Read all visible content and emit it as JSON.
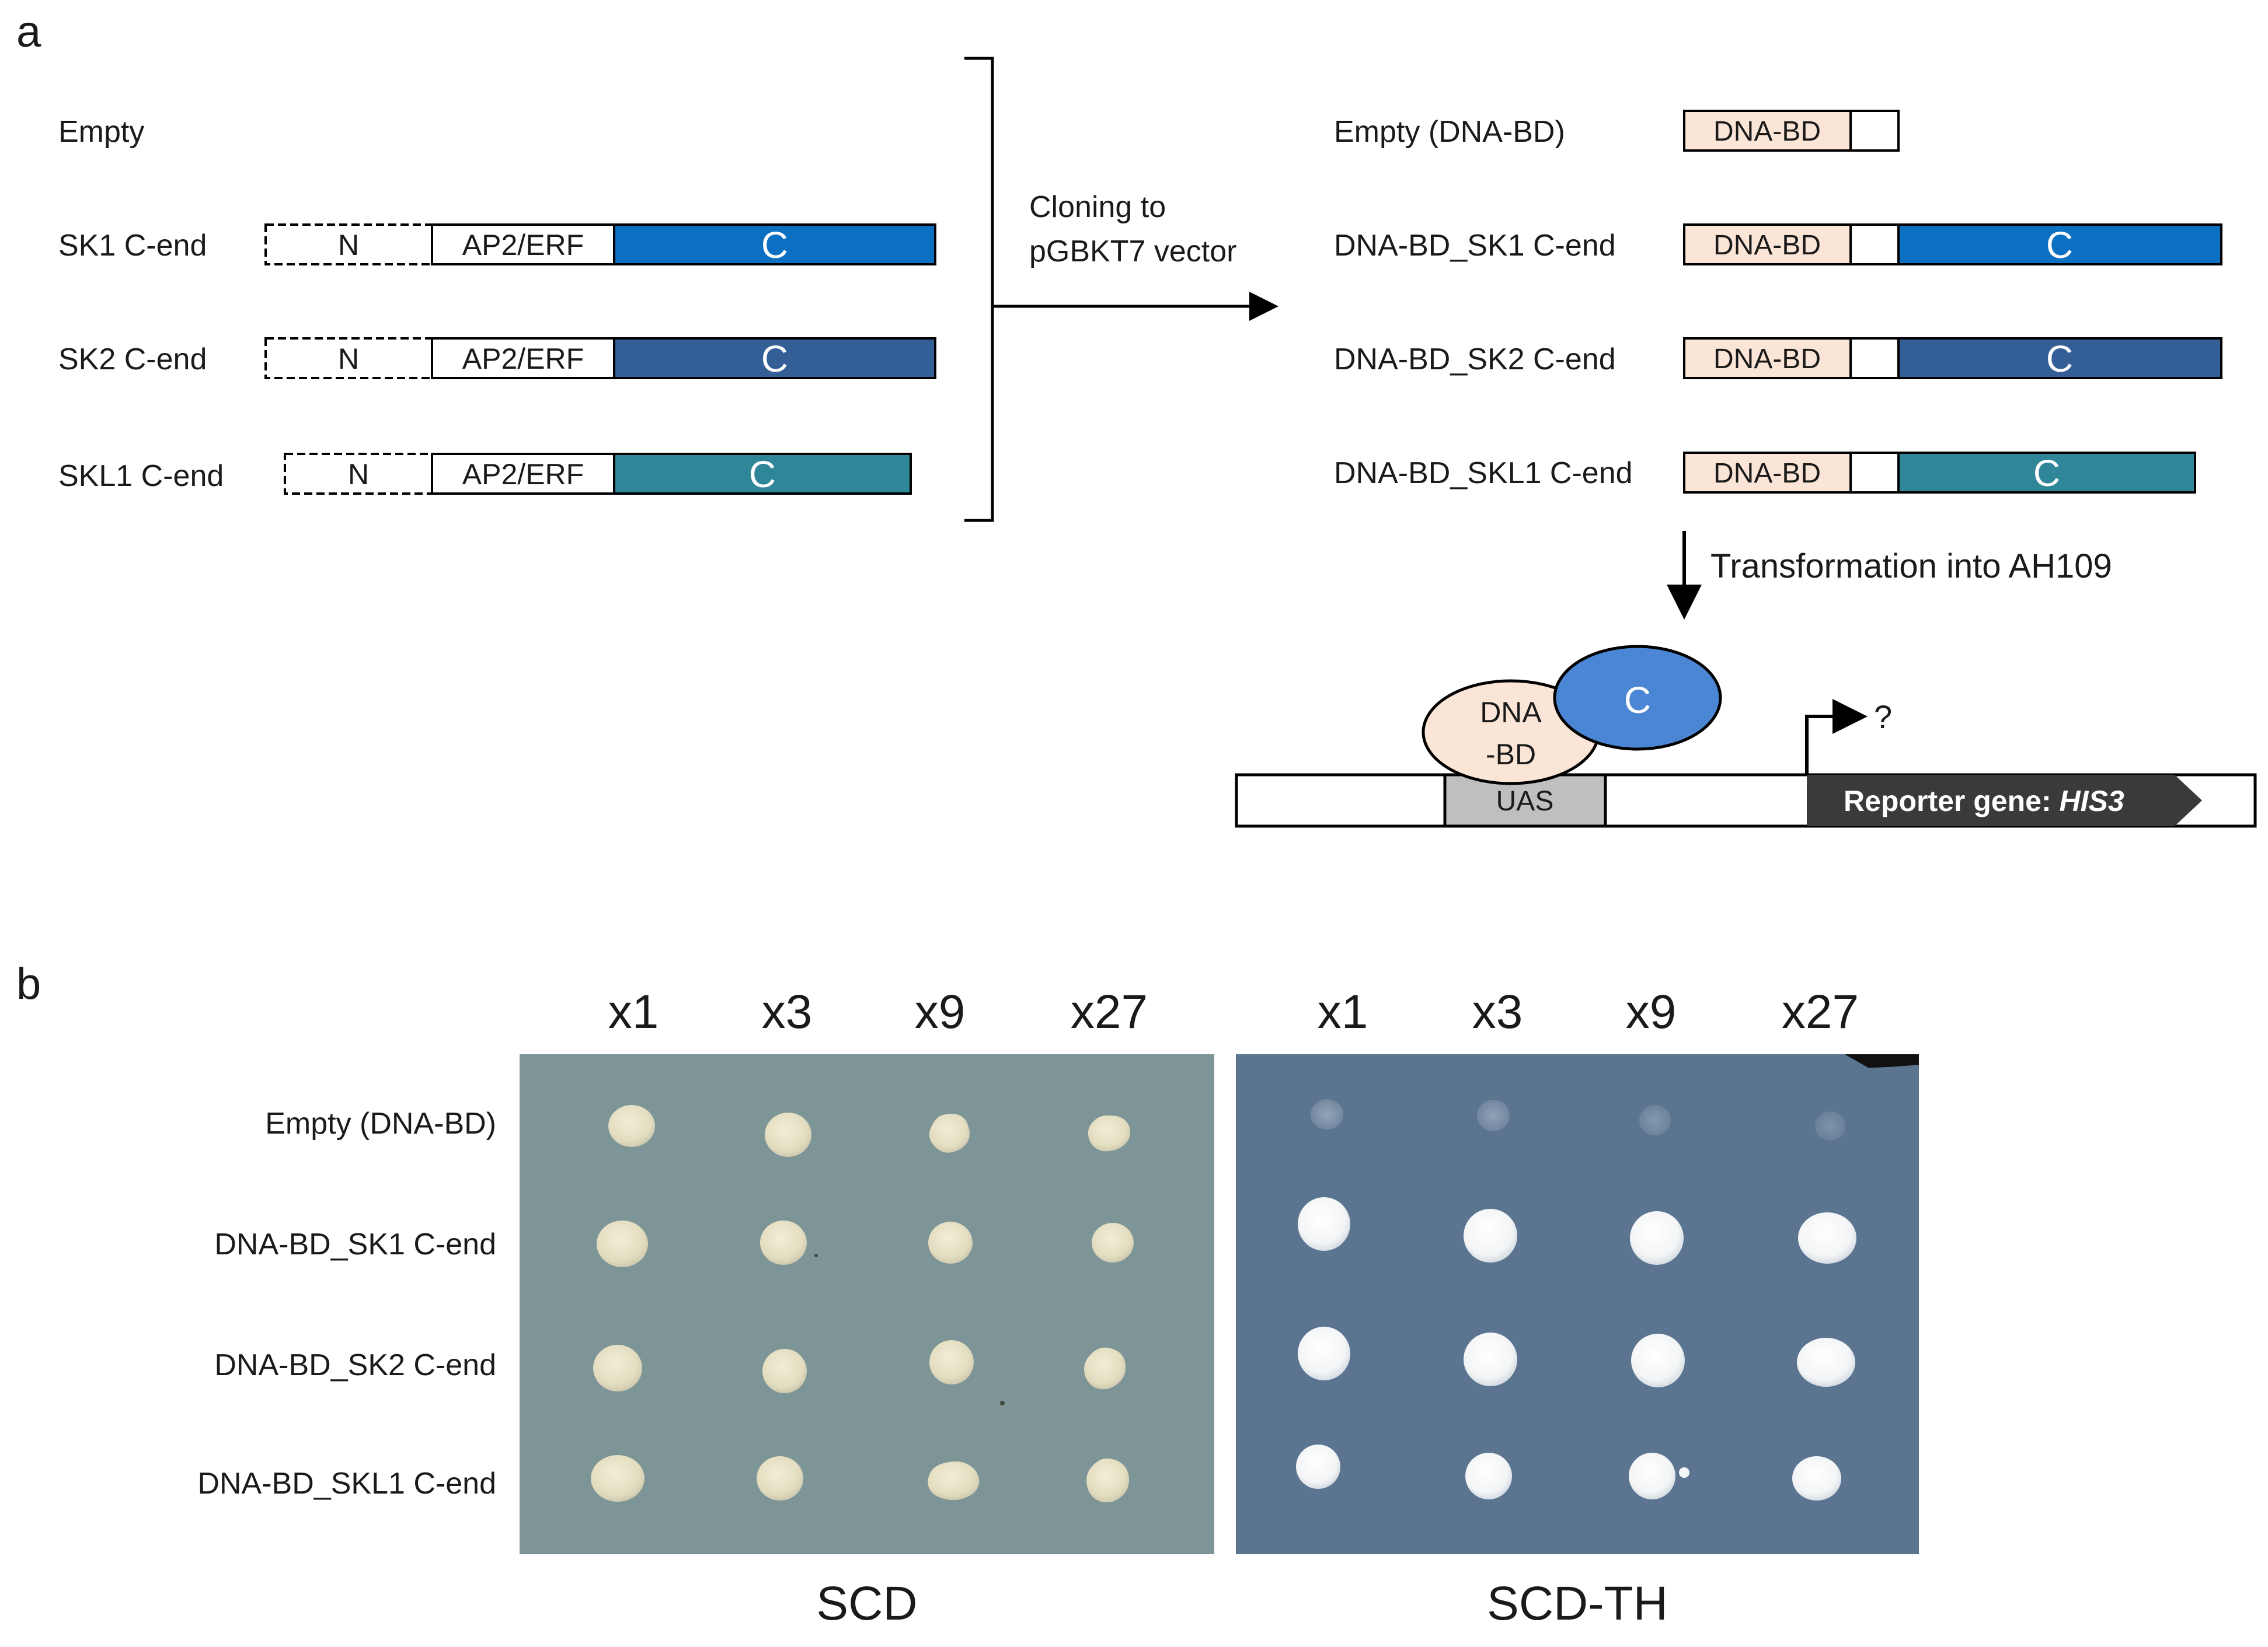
{
  "panel_a": {
    "label": "a",
    "left_rows": [
      {
        "name": "Empty"
      },
      {
        "name": "SK1 C-end",
        "n": "N",
        "ap2": "AP2/ERF",
        "c": "C"
      },
      {
        "name": "SK2 C-end",
        "n": "N",
        "ap2": "AP2/ERF",
        "c": "C"
      },
      {
        "name": "SKL1 C-end",
        "n": "N",
        "ap2": "AP2/ERF",
        "c": "C"
      }
    ],
    "cloning_line1": "Cloning to",
    "cloning_line2": "pGBKT7 vector",
    "right_rows": [
      {
        "name": "Empty (DNA-BD)",
        "bd": "DNA-BD"
      },
      {
        "name": "DNA-BD_SK1 C-end",
        "bd": "DNA-BD",
        "c": "C"
      },
      {
        "name": "DNA-BD_SK2 C-end",
        "bd": "DNA-BD",
        "c": "C"
      },
      {
        "name": "DNA-BD_SKL1 C-end",
        "bd": "DNA-BD",
        "c": "C"
      }
    ],
    "transformation": "Transformation into AH109",
    "mechanism": {
      "dna_bd_line1": "DNA",
      "dna_bd_line2": "-BD",
      "c": "C",
      "uas": "UAS",
      "question": "?",
      "reporter_prefix": "Reporter gene: ",
      "reporter_gene": "HIS3"
    },
    "colors": {
      "sk1": "#0b6fc2",
      "sk2": "#345f96",
      "skl1": "#2f8698",
      "dna_bd": "#fbe5d6",
      "c_ellipse": "#4a86d4",
      "uas": "#bfbfbf",
      "reporter": "#3a3a3a"
    }
  },
  "panel_b": {
    "label": "b",
    "dilutions": [
      "x1",
      "x3",
      "x9",
      "x27"
    ],
    "rows": [
      "Empty (DNA-BD)",
      "DNA-BD_SK1 C-end",
      "DNA-BD_SK2 C-end",
      "DNA-BD_SKL1 C-end"
    ],
    "plates": [
      {
        "medium": "SCD",
        "color": "#7d9596"
      },
      {
        "medium": "SCD-TH",
        "color": "#5b7591"
      }
    ]
  }
}
